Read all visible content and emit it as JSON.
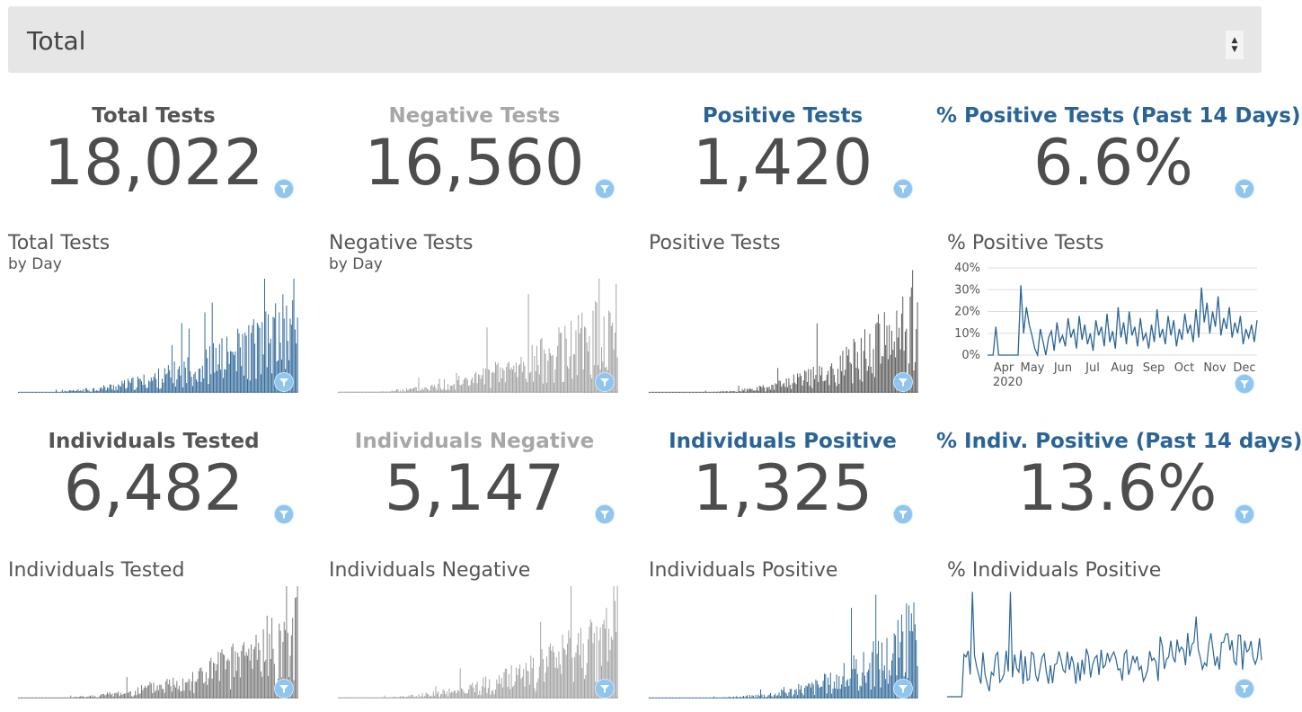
{
  "selector": {
    "value": "Total",
    "up_icon": "triangle-up",
    "down_icon": "triangle-down"
  },
  "colors": {
    "blue": "#2a6496",
    "gray_bar": "#a0a0a0",
    "dark_bar": "#555555",
    "filter": "#8fc5ee"
  },
  "kpis": [
    {
      "title": "Total Tests",
      "value": "18,022",
      "color": "dark"
    },
    {
      "title": "Negative Tests",
      "value": "16,560",
      "color": "gray"
    },
    {
      "title": "Positive Tests",
      "value": "1,420",
      "color": "blue"
    },
    {
      "title": "% Positive Tests (Past 14 Days)",
      "value": "6.6%",
      "color": "blue"
    },
    {
      "title": "Individuals Tested",
      "value": "6,482",
      "color": "dark"
    },
    {
      "title": "Individuals Negative",
      "value": "5,147",
      "color": "gray"
    },
    {
      "title": "Individuals Positive",
      "value": "1,325",
      "color": "blue"
    },
    {
      "title": "% Indiv. Positive (Past 14 days)",
      "value": "13.6%",
      "color": "blue"
    }
  ],
  "charts": [
    {
      "title": "Total Tests",
      "subtitle": "by Day"
    },
    {
      "title": "Negative Tests",
      "subtitle": "by Day"
    },
    {
      "title": "Positive Tests",
      "subtitle": ""
    },
    {
      "title": "% Positive Tests",
      "subtitle": ""
    },
    {
      "title": "Individuals Tested",
      "subtitle": ""
    },
    {
      "title": "Individuals Negative",
      "subtitle": ""
    },
    {
      "title": "Individuals Positive",
      "subtitle": ""
    },
    {
      "title": "% Individuals Positive",
      "subtitle": ""
    }
  ],
  "chart_data": {
    "type": "line",
    "title": "% Positive Tests",
    "y_ticks": [
      "40%",
      "30%",
      "20%",
      "10%",
      "0%"
    ],
    "ylim": [
      0,
      40
    ],
    "x_ticks": [
      "Apr",
      "May",
      "Jun",
      "Jul",
      "Aug",
      "Sep",
      "Oct",
      "Nov",
      "Dec"
    ],
    "x_year_label": "2020",
    "series": [
      {
        "values": [
          0,
          0,
          0,
          13,
          0,
          0,
          0,
          0,
          0,
          0,
          0,
          0,
          32,
          10,
          22,
          14,
          9,
          3,
          0,
          12,
          6,
          0,
          8,
          11,
          2,
          15,
          6,
          9,
          4,
          17,
          8,
          12,
          3,
          18,
          7,
          14,
          5,
          10,
          2,
          16,
          9,
          13,
          4,
          19,
          6,
          11,
          3,
          22,
          8,
          15,
          5,
          20,
          9,
          13,
          4,
          17,
          7,
          10,
          3,
          14,
          6,
          21,
          8,
          12,
          5,
          18,
          9,
          16,
          4,
          12,
          7,
          19,
          10,
          14,
          6,
          21,
          8,
          31,
          15,
          24,
          10,
          20,
          13,
          27,
          9,
          17,
          12,
          22,
          8,
          15,
          10,
          18,
          5,
          12,
          8,
          14,
          6,
          16
        ]
      }
    ]
  }
}
